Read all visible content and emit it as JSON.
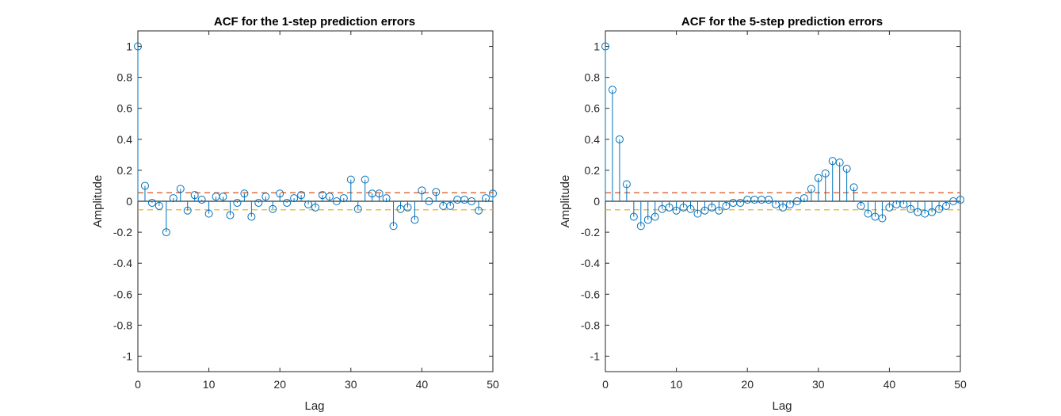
{
  "chart_data": [
    {
      "type": "stem",
      "title": "ACF for the 1-step prediction errors",
      "xlabel": "Lag",
      "ylabel": "Amplitude",
      "xlim": [
        0,
        50
      ],
      "ylim": [
        -1.1,
        1.1
      ],
      "xticks": [
        0,
        10,
        20,
        30,
        40,
        50
      ],
      "yticks": [
        -1,
        -0.8,
        -0.6,
        -0.4,
        -0.2,
        0,
        0.2,
        0.4,
        0.6,
        0.8,
        1
      ],
      "confidence_bounds": [
        0.055,
        -0.055
      ],
      "colors": {
        "stem": "#0072BD",
        "upper_bound": "#D95319",
        "lower_bound": "#EDB120"
      },
      "x": [
        0,
        1,
        2,
        3,
        4,
        5,
        6,
        7,
        8,
        9,
        10,
        11,
        12,
        13,
        14,
        15,
        16,
        17,
        18,
        19,
        20,
        21,
        22,
        23,
        24,
        25,
        26,
        27,
        28,
        29,
        30,
        31,
        32,
        33,
        34,
        35,
        36,
        37,
        38,
        39,
        40,
        41,
        42,
        43,
        44,
        45,
        46,
        47,
        48,
        49,
        50
      ],
      "values": [
        1.0,
        0.1,
        -0.01,
        -0.03,
        -0.2,
        0.02,
        0.08,
        -0.06,
        0.04,
        0.01,
        -0.08,
        0.03,
        0.03,
        -0.09,
        -0.01,
        0.05,
        -0.1,
        -0.01,
        0.03,
        -0.05,
        0.05,
        -0.01,
        0.02,
        0.04,
        -0.02,
        -0.04,
        0.04,
        0.03,
        0.0,
        0.02,
        0.14,
        -0.05,
        0.14,
        0.05,
        0.05,
        0.02,
        -0.16,
        -0.05,
        -0.04,
        -0.12,
        0.07,
        0.0,
        0.06,
        -0.03,
        -0.03,
        0.01,
        0.01,
        0.0,
        -0.06,
        0.02,
        0.05
      ]
    },
    {
      "type": "stem",
      "title": "ACF for the 5-step prediction errors",
      "xlabel": "Lag",
      "ylabel": "Amplitude",
      "xlim": [
        0,
        50
      ],
      "ylim": [
        -1.1,
        1.1
      ],
      "xticks": [
        0,
        10,
        20,
        30,
        40,
        50
      ],
      "yticks": [
        -1,
        -0.8,
        -0.6,
        -0.4,
        -0.2,
        0,
        0.2,
        0.4,
        0.6,
        0.8,
        1
      ],
      "confidence_bounds": [
        0.055,
        -0.055
      ],
      "colors": {
        "stem": "#0072BD",
        "upper_bound": "#D95319",
        "lower_bound": "#EDB120"
      },
      "x": [
        0,
        1,
        2,
        3,
        4,
        5,
        6,
        7,
        8,
        9,
        10,
        11,
        12,
        13,
        14,
        15,
        16,
        17,
        18,
        19,
        20,
        21,
        22,
        23,
        24,
        25,
        26,
        27,
        28,
        29,
        30,
        31,
        32,
        33,
        34,
        35,
        36,
        37,
        38,
        39,
        40,
        41,
        42,
        43,
        44,
        45,
        46,
        47,
        48,
        49,
        50
      ],
      "values": [
        1.0,
        0.72,
        0.4,
        0.11,
        -0.1,
        -0.16,
        -0.12,
        -0.1,
        -0.05,
        -0.04,
        -0.06,
        -0.04,
        -0.05,
        -0.08,
        -0.06,
        -0.04,
        -0.06,
        -0.03,
        -0.01,
        -0.01,
        0.01,
        0.01,
        0.01,
        0.01,
        -0.02,
        -0.04,
        -0.02,
        0.0,
        0.02,
        0.08,
        0.15,
        0.18,
        0.26,
        0.25,
        0.21,
        0.09,
        -0.03,
        -0.08,
        -0.1,
        -0.11,
        -0.04,
        -0.02,
        -0.02,
        -0.05,
        -0.07,
        -0.08,
        -0.07,
        -0.05,
        -0.03,
        0.0,
        0.01
      ]
    }
  ]
}
